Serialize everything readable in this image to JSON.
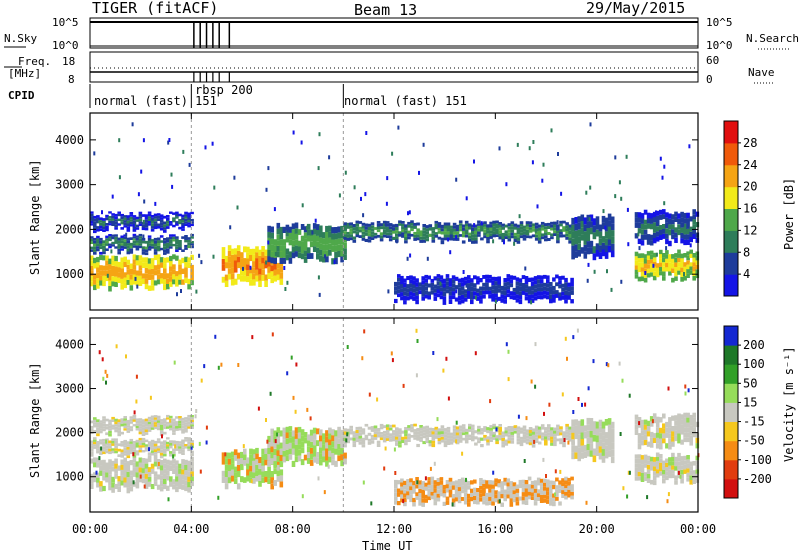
{
  "header": {
    "radar": "TIGER (fitACF)",
    "beam": "Beam 13",
    "date": "29/May/2015"
  },
  "strip": {
    "nsky_label": "N.Sky",
    "nsky_ticks": [
      "10^5",
      "10^0"
    ],
    "freq_label_1": "Freq.",
    "freq_label_2": "[MHz]",
    "freq_ticks": [
      "18",
      "8"
    ],
    "cpid_label": "CPID",
    "nsearch_label": "N.Search",
    "nsearch_ticks": [
      "10^5",
      "10^0"
    ],
    "nave_label": "Nave",
    "nave_ticks": [
      "60",
      "0"
    ],
    "cpid_segments": [
      {
        "name": "normal (fast)",
        "id": "151",
        "start_h": 0.0,
        "end_h": 4.0
      },
      {
        "name": "rbsp",
        "id": "200",
        "start_h": 4.0,
        "end_h": 10.0
      },
      {
        "name": "normal (fast)",
        "id": "151",
        "start_h": 10.0,
        "end_h": 24.0
      }
    ],
    "cpid_texts": [
      "normal (fast) 151",
      "rbsp 200",
      "normal (fast) 151"
    ]
  },
  "chart_data": [
    {
      "type": "heatmap",
      "name": "power",
      "ylabel": "Slant Range [km]",
      "y_ticks": [
        1000,
        2000,
        3000,
        4000
      ],
      "ylim": [
        200,
        4600
      ],
      "colorbar_label": "Power [dB]",
      "colorbar_ticks": [
        "4",
        "8",
        "12",
        "16",
        "20",
        "24",
        "28"
      ],
      "colorbar_colors": [
        "#1414e6",
        "#1e3c9b",
        "#2e7d5a",
        "#4fa84a",
        "#f2ea1a",
        "#f5a414",
        "#f05a0a",
        "#e10f0f"
      ],
      "bands": [
        {
          "t": [
            0,
            4
          ],
          "r": [
            700,
            1400
          ],
          "level": 22,
          "note": "strong near-range echoes"
        },
        {
          "t": [
            0,
            4
          ],
          "r": [
            1500,
            1850
          ],
          "level": 11
        },
        {
          "t": [
            0,
            4
          ],
          "r": [
            2000,
            2350
          ],
          "level": 8
        },
        {
          "t": [
            5.2,
            7.5
          ],
          "r": [
            800,
            1600
          ],
          "level": 24
        },
        {
          "t": [
            7,
            10
          ],
          "r": [
            1300,
            2100
          ],
          "level": 14
        },
        {
          "t": [
            10,
            19
          ],
          "r": [
            1750,
            2150
          ],
          "level": 12
        },
        {
          "t": [
            19,
            20.6
          ],
          "r": [
            1400,
            2300
          ],
          "level": 10
        },
        {
          "t": [
            21.5,
            24
          ],
          "r": [
            900,
            1500
          ],
          "level": 20
        },
        {
          "t": [
            21.5,
            24
          ],
          "r": [
            1700,
            2400
          ],
          "level": 9
        },
        {
          "t": [
            12,
            19
          ],
          "r": [
            400,
            950
          ],
          "level": 6
        }
      ]
    },
    {
      "type": "heatmap",
      "name": "velocity",
      "ylabel": "Slant Range [km]",
      "y_ticks": [
        1000,
        2000,
        3000,
        4000
      ],
      "ylim": [
        200,
        4600
      ],
      "colorbar_label": "Velocity [m s⁻¹]",
      "colorbar_ticks": [
        "200",
        "100",
        "50",
        "15",
        "-15",
        "-50",
        "-100",
        "-200"
      ],
      "colorbar_colors": [
        "#1428d2",
        "#1e7828",
        "#32a028",
        "#96dc5a",
        "#c8c8c0",
        "#f5c81e",
        "#f58c14",
        "#e13c0f",
        "#d20f0f"
      ],
      "x_ticks": [
        "00:00",
        "04:00",
        "08:00",
        "12:00",
        "16:00",
        "20:00",
        "00:00"
      ],
      "xlabel": "Time UT",
      "xlim_hours": [
        0,
        24
      ]
    }
  ]
}
